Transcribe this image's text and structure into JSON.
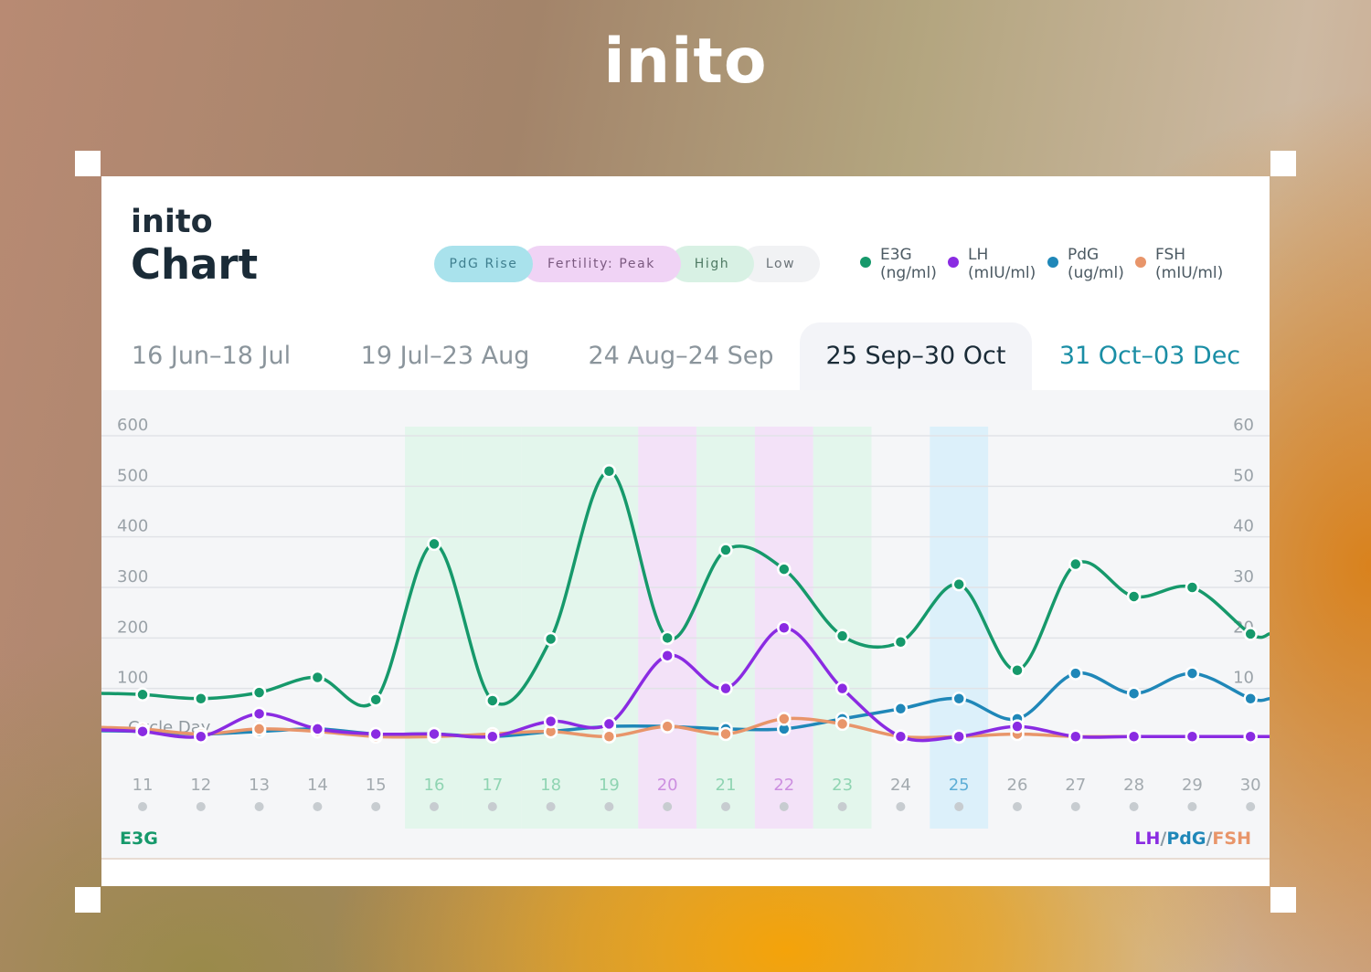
{
  "brand": "inito",
  "card": {
    "logo": "inito",
    "title": "Chart",
    "phases": [
      {
        "label": "PdG Rise",
        "color": "#a9e2ec",
        "text_color": "#3f7f8f"
      },
      {
        "label": "Fertility: Peak",
        "color": "#f0d3f5",
        "text_color": "#7b5a80"
      },
      {
        "label": "High",
        "color": "#d8f1e4",
        "text_color": "#4f7a64"
      },
      {
        "label": "Low",
        "color": "#f1f2f4",
        "text_color": "#6b7378"
      }
    ],
    "legend": [
      {
        "name": "E3G",
        "unit": "(ng/ml)",
        "color": "#16996b",
        "icon": "dot-icon"
      },
      {
        "name": "LH",
        "unit": "(mIU/ml)",
        "color": "#8a2be2",
        "icon": "dot-icon"
      },
      {
        "name": "PdG",
        "unit": "(ug/ml)",
        "color": "#1f87b8",
        "icon": "dot-icon"
      },
      {
        "name": "FSH",
        "unit": "(mIU/ml)",
        "color": "#e8956a",
        "icon": "dot-icon"
      }
    ],
    "tabs": [
      {
        "label": "16 Jun–18 Jul",
        "state": "inactive"
      },
      {
        "label": "19 Jul–23 Aug",
        "state": "inactive"
      },
      {
        "label": "24 Aug–24 Sep",
        "state": "inactive"
      },
      {
        "label": "25 Sep–30 Oct",
        "state": "active"
      },
      {
        "label": "31 Oct–03 Dec",
        "state": "accent"
      }
    ],
    "axis_left_label": "E3G",
    "axis_right_label": {
      "lh": "LH",
      "pdg": "PdG",
      "fsh": "FSH",
      "sep": "/"
    }
  },
  "chart_data": {
    "type": "line",
    "xlabel": "Cycle Day",
    "x": [
      11,
      12,
      13,
      14,
      15,
      16,
      17,
      18,
      19,
      20,
      21,
      22,
      23,
      24,
      25,
      26,
      27,
      28,
      29,
      30
    ],
    "y_left": {
      "label": "E3G",
      "ticks": [
        100,
        200,
        300,
        400,
        500,
        600
      ],
      "lim": [
        0,
        600
      ]
    },
    "y_right": {
      "label": "LH/PdG/FSH",
      "ticks": [
        10,
        20,
        30,
        40,
        50,
        60
      ],
      "lim": [
        0,
        60
      ]
    },
    "series": [
      {
        "name": "E3G",
        "axis": "left",
        "color": "#16996b",
        "values": [
          88,
          80,
          92,
          122,
          78,
          386,
          76,
          198,
          530,
          200,
          374,
          336,
          204,
          192,
          306,
          136,
          346,
          282,
          300,
          208
        ]
      },
      {
        "name": "LH",
        "axis": "right",
        "color": "#8a2be2",
        "values": [
          1.5,
          0.5,
          5,
          2,
          1,
          1,
          0.5,
          3.5,
          3,
          16.5,
          10,
          22,
          10,
          0.5,
          0.5,
          2.5,
          0.5,
          0.5,
          0.5,
          0.5
        ]
      },
      {
        "name": "PdG",
        "axis": "right",
        "color": "#1f87b8",
        "values": [
          1.5,
          1.0,
          1.5,
          2,
          1,
          1,
          0.5,
          1.5,
          2.5,
          2.5,
          2,
          2,
          4,
          6,
          8,
          4,
          13,
          9,
          13,
          8
        ]
      },
      {
        "name": "FSH",
        "axis": "right",
        "color": "#e8956a",
        "values": [
          2,
          1,
          2,
          1.5,
          0.5,
          0.5,
          1,
          1.5,
          0.5,
          2.5,
          1,
          4,
          3,
          0.5,
          0.5,
          1,
          0.5,
          0.5,
          0.5,
          0.5
        ]
      }
    ],
    "day_phases": {
      "16": "high",
      "17": "high",
      "18": "high",
      "19": "high",
      "20": "peak",
      "21": "high",
      "22": "peak",
      "23": "high",
      "25": "pdg-rise"
    },
    "phase_colors": {
      "high": "#e3f6ec",
      "peak": "#f3e2f8",
      "pdg-rise": "#dcf0fa"
    },
    "grid": true
  }
}
